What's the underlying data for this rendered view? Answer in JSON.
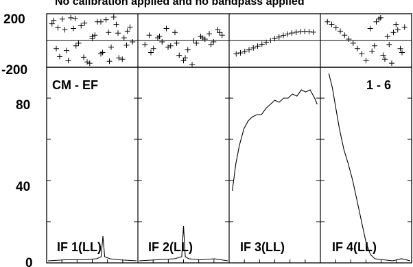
{
  "chart_data": {
    "type": "line",
    "title": "No calibration applied and no bandpass applied",
    "baseline_label": "CM - EF",
    "channel_range_label": "1 - 6",
    "phase_panel": {
      "ylim": [
        -200,
        200
      ],
      "yticks": [
        "200",
        "-200"
      ],
      "panels": [
        {
          "name": "IF 1(LL)",
          "x": [
            0.05,
            0.12,
            0.18,
            0.25,
            0.31,
            0.37,
            0.44,
            0.5,
            0.56,
            0.62,
            0.69,
            0.75,
            0.81,
            0.87,
            0.94,
            0.08,
            0.15,
            0.22,
            0.28,
            0.34,
            0.41,
            0.47,
            0.53,
            0.6,
            0.66,
            0.72,
            0.78,
            0.85,
            0.91,
            0.97,
            0.1,
            0.2,
            0.3,
            0.4,
            0.5,
            0.6,
            0.7,
            0.8,
            0.9,
            0.03
          ],
          "y": [
            150,
            -120,
            80,
            170,
            -40,
            110,
            -160,
            30,
            140,
            -90,
            60,
            175,
            -130,
            20,
            100,
            -60,
            160,
            -150,
            90,
            -20,
            130,
            -170,
            40,
            -100,
            155,
            -50,
            120,
            -140,
            70,
            -10,
            95,
            -75,
            165,
            -125,
            15,
            140,
            -155,
            55,
            -35,
            125
          ]
        },
        {
          "name": "IF 2(LL)",
          "x": [
            0.05,
            0.1,
            0.15,
            0.2,
            0.25,
            0.3,
            0.35,
            0.4,
            0.45,
            0.5,
            0.55,
            0.6,
            0.65,
            0.7,
            0.75,
            0.8,
            0.85,
            0.9,
            0.95,
            0.12,
            0.22,
            0.32,
            0.42,
            0.52,
            0.62,
            0.72,
            0.82,
            0.92
          ],
          "y": [
            -30,
            40,
            -60,
            20,
            -10,
            90,
            -40,
            60,
            -110,
            -150,
            -70,
            -180,
            -20,
            30,
            10,
            50,
            -10,
            80,
            40,
            -90,
            30,
            -50,
            -20,
            -130,
            0,
            20,
            -30,
            60
          ]
        },
        {
          "name": "IF 3(LL)",
          "x": [
            0.05,
            0.1,
            0.15,
            0.2,
            0.25,
            0.3,
            0.35,
            0.4,
            0.45,
            0.5,
            0.55,
            0.6,
            0.65,
            0.7,
            0.75,
            0.8,
            0.85,
            0.9,
            0.95
          ],
          "y": [
            -100,
            -92,
            -82,
            -70,
            -56,
            -42,
            -28,
            -14,
            0,
            14,
            26,
            38,
            48,
            56,
            62,
            66,
            68,
            66,
            62
          ]
        },
        {
          "name": "IF 4(LL)",
          "x": [
            0.05,
            0.1,
            0.15,
            0.2,
            0.25,
            0.3,
            0.35,
            0.4,
            0.45,
            0.5,
            0.55,
            0.6,
            0.65,
            0.7,
            0.75,
            0.8,
            0.85,
            0.9,
            0.95,
            0.62,
            0.72,
            0.82,
            0.92,
            0.57,
            0.67,
            0.77,
            0.87
          ],
          "y": [
            140,
            120,
            95,
            70,
            40,
            10,
            -20,
            -60,
            -100,
            -150,
            90,
            -40,
            160,
            -110,
            30,
            -170,
            120,
            -60,
            100,
            140,
            -140,
            60,
            -90,
            -80,
            170,
            -30,
            80
          ]
        }
      ]
    },
    "amp_panel": {
      "ylim": [
        0,
        95
      ],
      "yticks": [
        "80",
        "40",
        "0"
      ],
      "panels": [
        {
          "name": "IF 1(LL)",
          "x": [
            0,
            0.2,
            0.4,
            0.55,
            0.6,
            0.62,
            0.64,
            0.7,
            0.8,
            1.0
          ],
          "y": [
            1,
            1.5,
            1.5,
            2,
            3,
            13,
            3,
            2,
            1.5,
            1
          ]
        },
        {
          "name": "IF 2(LL)",
          "x": [
            0,
            0.2,
            0.4,
            0.48,
            0.5,
            0.52,
            0.56,
            0.7,
            0.85,
            1.0
          ],
          "y": [
            1,
            1.5,
            2,
            3,
            18,
            3,
            2,
            1.5,
            2,
            1
          ]
        },
        {
          "name": "IF 3(LL)",
          "x": [
            0.02,
            0.06,
            0.1,
            0.15,
            0.2,
            0.25,
            0.3,
            0.35,
            0.4,
            0.45,
            0.5,
            0.55,
            0.6,
            0.65,
            0.7,
            0.75,
            0.8,
            0.85,
            0.9,
            0.95,
            0.98
          ],
          "y": [
            35,
            48,
            57,
            65,
            69,
            71,
            72,
            72,
            75,
            77,
            79,
            78,
            80,
            80,
            82,
            81,
            84,
            83,
            84,
            80,
            77
          ]
        },
        {
          "name": "IF 4(LL)",
          "x": [
            0.08,
            0.12,
            0.16,
            0.2,
            0.25,
            0.3,
            0.35,
            0.4,
            0.45,
            0.5,
            0.55,
            0.6,
            0.7,
            0.8,
            0.9,
            1.0
          ],
          "y": [
            92,
            85,
            75,
            65,
            55,
            48,
            40,
            30,
            20,
            10,
            4,
            2,
            1.5,
            1,
            2,
            1
          ]
        }
      ]
    }
  }
}
